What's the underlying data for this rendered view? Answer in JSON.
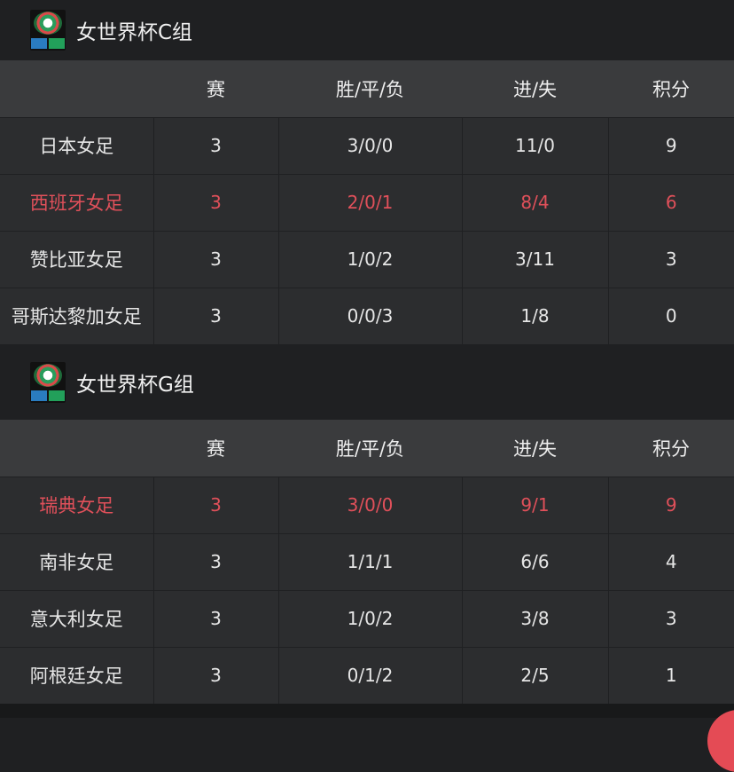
{
  "columns": [
    "",
    "赛",
    "胜/平/负",
    "进/失",
    "积分"
  ],
  "groups": [
    {
      "title": "女世界杯C组",
      "rows": [
        {
          "team": "日本女足",
          "played": "3",
          "wdl": "3/0/0",
          "goals": "11/0",
          "points": "9",
          "highlight": false
        },
        {
          "team": "西班牙女足",
          "played": "3",
          "wdl": "2/0/1",
          "goals": "8/4",
          "points": "6",
          "highlight": true
        },
        {
          "team": "赞比亚女足",
          "played": "3",
          "wdl": "1/0/2",
          "goals": "3/11",
          "points": "3",
          "highlight": false
        },
        {
          "team": "哥斯达黎加女足",
          "played": "3",
          "wdl": "0/0/3",
          "goals": "1/8",
          "points": "0",
          "highlight": false
        }
      ]
    },
    {
      "title": "女世界杯G组",
      "rows": [
        {
          "team": "瑞典女足",
          "played": "3",
          "wdl": "3/0/0",
          "goals": "9/1",
          "points": "9",
          "highlight": true
        },
        {
          "team": "南非女足",
          "played": "3",
          "wdl": "1/1/1",
          "goals": "6/6",
          "points": "4",
          "highlight": false
        },
        {
          "team": "意大利女足",
          "played": "3",
          "wdl": "1/0/2",
          "goals": "3/8",
          "points": "3",
          "highlight": false
        },
        {
          "team": "阿根廷女足",
          "played": "3",
          "wdl": "0/1/2",
          "goals": "2/5",
          "points": "1",
          "highlight": false
        }
      ]
    }
  ],
  "colors": {
    "highlight": "#e0505a",
    "background": "#1f2022"
  }
}
